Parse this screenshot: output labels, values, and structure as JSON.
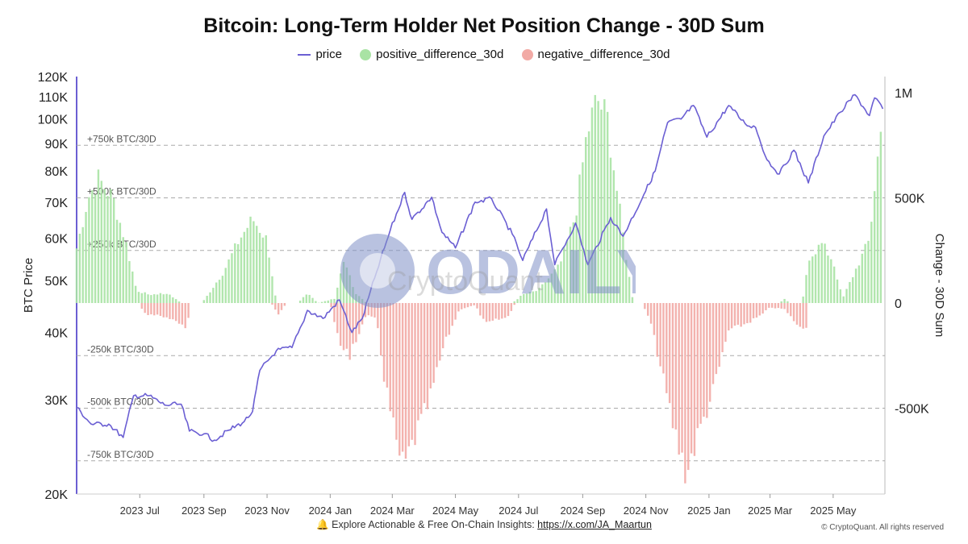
{
  "title": "Bitcoin: Long-Term Holder Net Position Change - 30D Sum",
  "legend": [
    {
      "label": "price",
      "color": "#6b5fd3",
      "kind": "line"
    },
    {
      "label": "positive_difference_30d",
      "color": "#a9e3a4",
      "kind": "dot"
    },
    {
      "label": "negative_difference_30d",
      "color": "#f2aaa5",
      "kind": "dot"
    }
  ],
  "footer": {
    "icon": "bell-icon",
    "text": "Explore Actionable & Free On-Chain Insights:",
    "link": "https://x.com/JA_Maartun"
  },
  "copyright": "© CryptoQuant. All rights reserved",
  "watermark": {
    "text": "ODAILY",
    "sub_text": "CryptoQuant"
  },
  "chart_data": {
    "type": "line",
    "title": "Bitcoin: Long-Term Holder Net Position Change - 30D Sum",
    "y_left_label": "BTC Price",
    "y_right_label": "Change - 30D Sum",
    "y_left_scale": "log",
    "y_left_range": [
      20000,
      120000
    ],
    "y_right_range": [
      -920000,
      1000000
    ],
    "y_left_ticks": [
      "20K",
      "30K",
      "40K",
      "50K",
      "60K",
      "70K",
      "80K",
      "90K",
      "100K",
      "110K",
      "120K"
    ],
    "y_left_tick_values": [
      20000,
      30000,
      40000,
      50000,
      60000,
      70000,
      80000,
      90000,
      100000,
      110000,
      120000
    ],
    "y_right_ticks": [
      "-500K",
      "0",
      "500K",
      "1M"
    ],
    "y_right_tick_values": [
      -500000,
      0,
      500000,
      1000000
    ],
    "x_range": [
      "2023-05-01",
      "2025-06-20"
    ],
    "x_ticks": [
      "2023 Jul",
      "2023 Sep",
      "2023 Nov",
      "2024 Jan",
      "2024 Mar",
      "2024 May",
      "2024 Jul",
      "2024 Sep",
      "2024 Nov",
      "2025 Jan",
      "2025 Mar",
      "2025 May"
    ],
    "x_tick_dates": [
      "2023-07-01",
      "2023-09-01",
      "2023-11-01",
      "2024-01-01",
      "2024-03-01",
      "2024-05-01",
      "2024-07-01",
      "2024-09-01",
      "2024-11-01",
      "2025-01-01",
      "2025-03-01",
      "2025-05-01"
    ],
    "reference_lines": [
      {
        "value": 750000,
        "label": "+750k BTC/30D"
      },
      {
        "value": 500000,
        "label": "+500k BTC/30D"
      },
      {
        "value": 250000,
        "label": "+250k BTC/30D"
      },
      {
        "value": -250000,
        "label": "-250k BTC/30D"
      },
      {
        "value": -500000,
        "label": "-500k BTC/30D"
      },
      {
        "value": -750000,
        "label": "-750k BTC/30D"
      }
    ],
    "grid": "dashed horizontal reference lines",
    "legend_position": "top-center",
    "series": [
      {
        "name": "price",
        "axis": "left",
        "color": "#6b5fd3",
        "points": [
          [
            "2023-05-01",
            29000
          ],
          [
            "2023-05-15",
            27000
          ],
          [
            "2023-06-01",
            27000
          ],
          [
            "2023-06-15",
            25500
          ],
          [
            "2023-06-25",
            30500
          ],
          [
            "2023-07-10",
            30500
          ],
          [
            "2023-07-25",
            29300
          ],
          [
            "2023-08-10",
            29400
          ],
          [
            "2023-08-18",
            26200
          ],
          [
            "2023-09-01",
            25900
          ],
          [
            "2023-09-11",
            25200
          ],
          [
            "2023-09-25",
            26300
          ],
          [
            "2023-10-10",
            27300
          ],
          [
            "2023-10-18",
            28500
          ],
          [
            "2023-10-25",
            34000
          ],
          [
            "2023-11-10",
            37000
          ],
          [
            "2023-11-25",
            37500
          ],
          [
            "2023-12-05",
            41500
          ],
          [
            "2023-12-10",
            44000
          ],
          [
            "2023-12-25",
            42500
          ],
          [
            "2024-01-10",
            46000
          ],
          [
            "2024-01-22",
            40000
          ],
          [
            "2024-02-01",
            42500
          ],
          [
            "2024-02-15",
            52000
          ],
          [
            "2024-02-28",
            62000
          ],
          [
            "2024-03-13",
            73000
          ],
          [
            "2024-03-20",
            65000
          ],
          [
            "2024-04-08",
            71500
          ],
          [
            "2024-04-18",
            61500
          ],
          [
            "2024-05-01",
            57500
          ],
          [
            "2024-05-20",
            70000
          ],
          [
            "2024-06-05",
            71000
          ],
          [
            "2024-06-25",
            61000
          ],
          [
            "2024-07-05",
            54500
          ],
          [
            "2024-07-28",
            68000
          ],
          [
            "2024-08-05",
            53500
          ],
          [
            "2024-08-25",
            64000
          ],
          [
            "2024-09-06",
            53500
          ],
          [
            "2024-09-28",
            65500
          ],
          [
            "2024-10-10",
            60500
          ],
          [
            "2024-10-30",
            72300
          ],
          [
            "2024-11-10",
            80000
          ],
          [
            "2024-11-22",
            98500
          ],
          [
            "2024-12-05",
            100000
          ],
          [
            "2024-12-17",
            106000
          ],
          [
            "2024-12-30",
            92500
          ],
          [
            "2025-01-20",
            106000
          ],
          [
            "2025-02-05",
            98000
          ],
          [
            "2025-02-15",
            96500
          ],
          [
            "2025-02-26",
            84000
          ],
          [
            "2025-03-10",
            79000
          ],
          [
            "2025-03-24",
            87500
          ],
          [
            "2025-04-07",
            76000
          ],
          [
            "2025-04-22",
            93000
          ],
          [
            "2025-05-08",
            103000
          ],
          [
            "2025-05-22",
            111000
          ],
          [
            "2025-06-05",
            101500
          ],
          [
            "2025-06-10",
            109500
          ],
          [
            "2025-06-18",
            104500
          ]
        ]
      },
      {
        "name": "positive_difference_30d",
        "axis": "right",
        "color": "#a9e3a4",
        "points": [
          [
            "2023-05-01",
            260000
          ],
          [
            "2023-05-12",
            500000
          ],
          [
            "2023-05-22",
            590000
          ],
          [
            "2023-06-05",
            500000
          ],
          [
            "2023-06-18",
            280000
          ],
          [
            "2023-06-28",
            60000
          ],
          [
            "2023-07-10",
            40000
          ],
          [
            "2023-07-28",
            45000
          ],
          [
            "2023-08-10",
            0
          ],
          [
            "2023-08-30",
            0
          ],
          [
            "2023-09-05",
            40000
          ],
          [
            "2023-09-20",
            150000
          ],
          [
            "2023-10-05",
            300000
          ],
          [
            "2023-10-18",
            400000
          ],
          [
            "2023-11-01",
            300000
          ],
          [
            "2023-11-10",
            0
          ],
          [
            "2023-12-01",
            0
          ],
          [
            "2023-12-10",
            50000
          ],
          [
            "2023-12-20",
            0
          ],
          [
            "2024-01-05",
            20000
          ],
          [
            "2024-01-15",
            200000
          ],
          [
            "2024-01-25",
            50000
          ],
          [
            "2024-02-05",
            0
          ],
          [
            "2024-06-25",
            0
          ],
          [
            "2024-07-05",
            40000
          ],
          [
            "2024-07-20",
            60000
          ],
          [
            "2024-08-10",
            180000
          ],
          [
            "2024-08-25",
            420000
          ],
          [
            "2024-09-05",
            800000
          ],
          [
            "2024-09-15",
            970000
          ],
          [
            "2024-09-25",
            870000
          ],
          [
            "2024-10-05",
            500000
          ],
          [
            "2024-10-15",
            150000
          ],
          [
            "2024-10-20",
            0
          ],
          [
            "2025-03-10",
            0
          ],
          [
            "2025-03-15",
            20000
          ],
          [
            "2025-03-20",
            0
          ],
          [
            "2025-04-01",
            0
          ],
          [
            "2025-04-08",
            220000
          ],
          [
            "2025-04-20",
            280000
          ],
          [
            "2025-05-01",
            200000
          ],
          [
            "2025-05-10",
            20000
          ],
          [
            "2025-05-22",
            150000
          ],
          [
            "2025-06-05",
            300000
          ],
          [
            "2025-06-12",
            650000
          ],
          [
            "2025-06-18",
            880000
          ]
        ]
      },
      {
        "name": "negative_difference_30d",
        "axis": "right",
        "color": "#f2aaa5",
        "points": [
          [
            "2023-07-01",
            0
          ],
          [
            "2023-07-05",
            -50000
          ],
          [
            "2023-07-20",
            -60000
          ],
          [
            "2023-08-05",
            -90000
          ],
          [
            "2023-08-15",
            -120000
          ],
          [
            "2023-08-20",
            0
          ],
          [
            "2023-11-05",
            0
          ],
          [
            "2023-11-12",
            -50000
          ],
          [
            "2023-11-20",
            0
          ],
          [
            "2024-01-01",
            0
          ],
          [
            "2024-01-10",
            -200000
          ],
          [
            "2024-01-20",
            -250000
          ],
          [
            "2024-02-05",
            -60000
          ],
          [
            "2024-02-15",
            -80000
          ],
          [
            "2024-02-22",
            -350000
          ],
          [
            "2024-03-05",
            -680000
          ],
          [
            "2024-03-12",
            -790000
          ],
          [
            "2024-03-22",
            -650000
          ],
          [
            "2024-04-05",
            -480000
          ],
          [
            "2024-04-20",
            -200000
          ],
          [
            "2024-05-05",
            -30000
          ],
          [
            "2024-05-20",
            -10000
          ],
          [
            "2024-05-30",
            -100000
          ],
          [
            "2024-06-10",
            -80000
          ],
          [
            "2024-06-20",
            -70000
          ],
          [
            "2024-06-28",
            0
          ],
          [
            "2024-10-28",
            0
          ],
          [
            "2024-11-05",
            -80000
          ],
          [
            "2024-11-15",
            -300000
          ],
          [
            "2024-11-28",
            -600000
          ],
          [
            "2024-12-10",
            -810000
          ],
          [
            "2024-12-20",
            -650000
          ],
          [
            "2025-01-05",
            -420000
          ],
          [
            "2025-01-20",
            -130000
          ],
          [
            "2025-02-05",
            -100000
          ],
          [
            "2025-02-20",
            -60000
          ],
          [
            "2025-03-01",
            -20000
          ],
          [
            "2025-03-15",
            -30000
          ],
          [
            "2025-03-25",
            -90000
          ],
          [
            "2025-04-05",
            -120000
          ],
          [
            "2025-04-08",
            0
          ]
        ]
      }
    ]
  }
}
